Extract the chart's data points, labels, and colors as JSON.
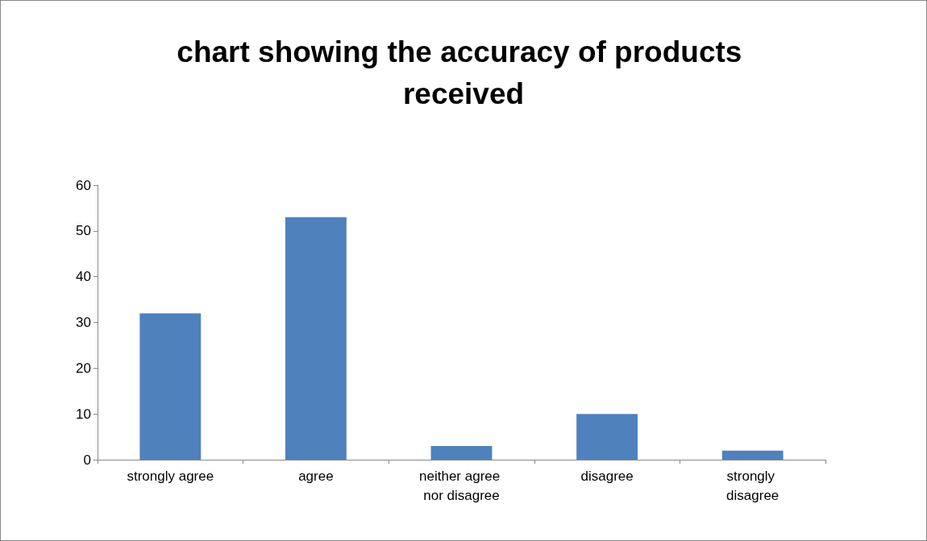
{
  "chart_data": {
    "type": "bar",
    "title": "chart showing the accuracy of products received",
    "categories": [
      "strongly agree",
      "agree",
      "neither agree nor disagree",
      "disagree",
      "strongly disagree"
    ],
    "values": [
      32,
      53,
      3,
      10,
      2
    ],
    "color": "#4f81bd",
    "ylim": [
      0,
      60
    ],
    "yticks": [
      0,
      10,
      20,
      30,
      40,
      50,
      60
    ],
    "grid": false
  }
}
